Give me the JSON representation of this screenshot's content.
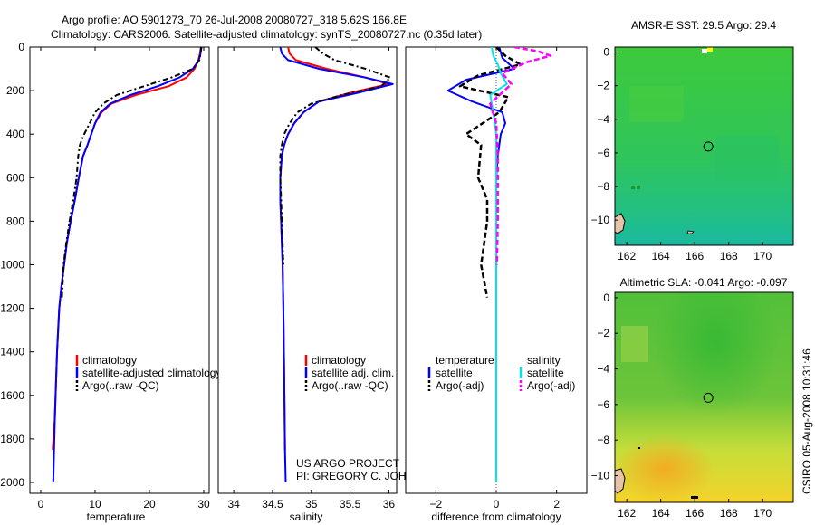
{
  "header": {
    "line1": "Argo profile: AO 5901273_70 26-Jul-2008 20080727_318 5.62S 166.8E",
    "line2": "Climatology: CARS2006. Satellite-adjusted climatology: synTS_20080727.nc (0.35d later)"
  },
  "side_stamp": "CSIRO 05-Aug-2008 10:31:46",
  "credits": {
    "line1": "US ARGO PROJECT",
    "line2": "PI: GREGORY C. JOHNSON"
  },
  "colors": {
    "climatology": "#ff0000",
    "satellite": "#0000ff",
    "argo": "#000000",
    "sal_satellite": "#00e5e5",
    "sal_argo": "#ff00ff"
  },
  "chart_data": [
    {
      "type": "line",
      "xlabel": "temperature",
      "xlim": [
        -2,
        31
      ],
      "ylim": [
        2050,
        0
      ],
      "xticks": [
        0,
        10,
        20,
        30
      ],
      "yticks": [
        0,
        200,
        400,
        600,
        800,
        1000,
        1200,
        1400,
        1600,
        1800,
        2000
      ],
      "legend": [
        "climatology",
        "satellite-adjusted climatology",
        "Argo(..raw -QC)"
      ],
      "series": [
        {
          "name": "climatology",
          "x": [
            29.5,
            29.3,
            29.0,
            28.3,
            26.8,
            23.5,
            17.5,
            13.0,
            11.2,
            10.0,
            9.3,
            8.6,
            7.8,
            7.0,
            6.3,
            5.5,
            4.8,
            4.3,
            3.8,
            3.4,
            3.0,
            2.6,
            2.2
          ],
          "y": [
            0,
            30,
            60,
            100,
            140,
            180,
            220,
            260,
            300,
            350,
            400,
            450,
            500,
            600,
            700,
            800,
            900,
            1000,
            1100,
            1200,
            1400,
            1700,
            1850
          ]
        },
        {
          "name": "satellite-adjusted climatology",
          "x": [
            29.6,
            29.4,
            29.1,
            28.0,
            25.5,
            21.5,
            16.5,
            12.8,
            11.0,
            10.0,
            9.3,
            8.6,
            7.8,
            7.0,
            6.3,
            5.5,
            4.8,
            4.3,
            3.8,
            3.4,
            3.0,
            2.6,
            2.4,
            2.3
          ],
          "y": [
            0,
            30,
            60,
            100,
            140,
            180,
            220,
            260,
            300,
            350,
            400,
            450,
            500,
            600,
            700,
            800,
            900,
            1000,
            1100,
            1200,
            1400,
            1700,
            1900,
            2000
          ]
        },
        {
          "name": "Argo(..raw -QC)",
          "x": [
            29.5,
            29.4,
            29.2,
            28.0,
            24.0,
            19.0,
            14.0,
            11.5,
            10.0,
            9.0,
            8.0,
            7.2,
            6.9,
            6.6,
            6.0,
            5.3,
            4.7,
            4.2,
            3.9
          ],
          "y": [
            0,
            30,
            60,
            100,
            140,
            180,
            220,
            260,
            300,
            350,
            400,
            450,
            500,
            600,
            700,
            800,
            900,
            1000,
            1150
          ]
        }
      ]
    },
    {
      "type": "line",
      "xlabel": "salinity",
      "xlim": [
        33.8,
        36.1
      ],
      "ylim": [
        2050,
        0
      ],
      "xticks": [
        34,
        34.5,
        35,
        35.5,
        36
      ],
      "xticklabels": [
        "34",
        "34.5",
        "35",
        "35.5",
        "36"
      ],
      "legend": [
        "climatology",
        "satellite adj. clim.",
        "Argo(..raw -QC)"
      ],
      "series": [
        {
          "name": "climatology",
          "x": [
            34.7,
            34.72,
            34.8,
            35.2,
            35.7,
            36.0,
            35.5,
            35.1,
            34.9,
            34.78,
            34.7,
            34.65,
            34.62,
            34.6,
            34.6,
            34.61,
            34.62,
            34.63,
            34.64,
            34.65,
            34.66
          ],
          "y": [
            0,
            30,
            60,
            100,
            140,
            170,
            210,
            250,
            300,
            350,
            400,
            450,
            500,
            600,
            700,
            800,
            900,
            1000,
            1200,
            1500,
            1850
          ]
        },
        {
          "name": "satellite adj. clim.",
          "x": [
            34.6,
            34.62,
            34.7,
            35.1,
            35.7,
            36.05,
            35.6,
            35.1,
            34.9,
            34.78,
            34.7,
            34.65,
            34.62,
            34.6,
            34.6,
            34.61,
            34.62,
            34.63,
            34.64,
            34.65,
            34.66,
            34.67
          ],
          "y": [
            0,
            30,
            60,
            100,
            140,
            170,
            210,
            250,
            300,
            350,
            400,
            450,
            500,
            600,
            700,
            800,
            900,
            1000,
            1200,
            1500,
            1850,
            2000
          ]
        },
        {
          "name": "Argo(..raw -QC)",
          "x": [
            35.05,
            35.15,
            35.3,
            35.7,
            36.02,
            35.9,
            35.4,
            35.0,
            34.82,
            34.72,
            34.65,
            34.62,
            34.6,
            34.6,
            34.61,
            34.62,
            34.63,
            34.64
          ],
          "y": [
            0,
            30,
            60,
            100,
            140,
            180,
            220,
            260,
            300,
            350,
            400,
            450,
            500,
            600,
            700,
            800,
            900,
            1000
          ]
        }
      ]
    },
    {
      "type": "line",
      "xlabel": "difference from climatology",
      "xlim": [
        -3,
        3
      ],
      "ylim": [
        2050,
        0
      ],
      "xticks": [
        -2,
        0,
        2
      ],
      "xticklabels": [
        "−2",
        "0",
        "2"
      ],
      "legend_headers": [
        "temperature",
        "salinity"
      ],
      "legend": [
        "satellite",
        "Argo(-adj)",
        "satellite",
        "Argo(-adj)"
      ],
      "series": [
        {
          "name": "temperature satellite",
          "x": [
            0.1,
            0.2,
            0.6,
            -1.0,
            -1.6,
            -0.8,
            0.2,
            0.3,
            0.15,
            0.05,
            0,
            0
          ],
          "y": [
            0,
            50,
            100,
            150,
            200,
            250,
            300,
            350,
            400,
            500,
            600,
            2000
          ]
        },
        {
          "name": "temperature Argo(-adj)",
          "x": [
            0,
            0.3,
            0.8,
            -0.6,
            -1.2,
            0.4,
            0.1,
            -1.0,
            -0.5,
            -0.6,
            -0.3,
            -0.3,
            -0.4,
            -0.5,
            -0.3
          ],
          "y": [
            0,
            40,
            80,
            130,
            180,
            230,
            300,
            400,
            450,
            600,
            700,
            800,
            900,
            1000,
            1150
          ]
        },
        {
          "name": "salinity satellite",
          "x": [
            -0.15,
            -0.1,
            0.05,
            0.15,
            0.35,
            -0.2,
            -0.1,
            0,
            0,
            0
          ],
          "y": [
            0,
            40,
            80,
            120,
            170,
            220,
            300,
            400,
            600,
            2000
          ]
        },
        {
          "name": "salinity Argo(-adj)",
          "x": [
            0.6,
            1.4,
            1.8,
            1.0,
            0.2,
            0.5,
            -0.2,
            0,
            0.05,
            0.05,
            0.02
          ],
          "y": [
            0,
            20,
            40,
            70,
            120,
            170,
            260,
            350,
            500,
            800,
            1000
          ]
        }
      ]
    },
    {
      "type": "heatmap",
      "title": "AMSR-E SST: 29.5 Argo: 29.4",
      "xticks": [
        162,
        164,
        166,
        168,
        170
      ],
      "yticks": [
        0,
        -2,
        -4,
        -6,
        -8,
        -10
      ],
      "xlim": [
        161.3,
        171.8
      ],
      "ylim": [
        -11.5,
        0.3
      ],
      "marker": {
        "lon": 166.8,
        "lat": -5.62
      }
    },
    {
      "type": "heatmap",
      "title": "Altimetric SLA: -0.041 Argo: -0.097",
      "xticks": [
        162,
        164,
        166,
        168,
        170
      ],
      "yticks": [
        0,
        -2,
        -4,
        -6,
        -8,
        -10
      ],
      "xlim": [
        161.3,
        171.8
      ],
      "ylim": [
        -11.5,
        0.3
      ],
      "marker": {
        "lon": 166.8,
        "lat": -5.62
      }
    }
  ]
}
